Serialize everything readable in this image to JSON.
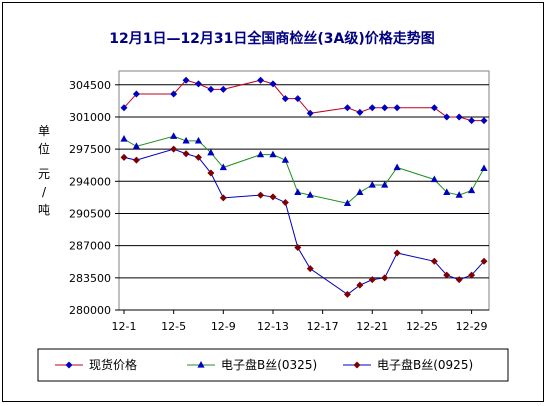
{
  "chart_data": {
    "type": "line",
    "title": "12月1日—12月31日全国商检丝(3A级)价格走势图",
    "ylabel": [
      "单",
      "位",
      "元",
      "/",
      "吨"
    ],
    "xlabel": "",
    "ylim": [
      280000,
      306000
    ],
    "yticks": [
      280000,
      283500,
      287000,
      290500,
      294000,
      297500,
      301000,
      304500
    ],
    "xlim": [
      1,
      30
    ],
    "xticks": [
      {
        "x": 1,
        "label": "12-1"
      },
      {
        "x": 5,
        "label": "12-5"
      },
      {
        "x": 9,
        "label": "12-9"
      },
      {
        "x": 13,
        "label": "12-13"
      },
      {
        "x": 17,
        "label": "12-17"
      },
      {
        "x": 21,
        "label": "12-21"
      },
      {
        "x": 25,
        "label": "12-25"
      },
      {
        "x": 29,
        "label": "12-29"
      }
    ],
    "grid": "horizontal",
    "legend_position": "bottom",
    "series": [
      {
        "name": "现货价格",
        "color": "#c0001e",
        "marker": "diamond",
        "marker_color": "#0000c0",
        "points": [
          [
            1,
            302000
          ],
          [
            2,
            303500
          ],
          [
            5,
            303500
          ],
          [
            6,
            305000
          ],
          [
            7,
            304600
          ],
          [
            8,
            304000
          ],
          [
            9,
            304000
          ],
          [
            12,
            305000
          ],
          [
            13,
            304600
          ],
          [
            14,
            303000
          ],
          [
            15,
            303000
          ],
          [
            16,
            301400
          ],
          [
            19,
            302000
          ],
          [
            20,
            301500
          ],
          [
            21,
            302000
          ],
          [
            22,
            302000
          ],
          [
            23,
            302000
          ],
          [
            26,
            302000
          ],
          [
            27,
            301000
          ],
          [
            28,
            301000
          ],
          [
            29,
            300600
          ],
          [
            30,
            300600
          ]
        ]
      },
      {
        "name": "电子盘B丝(0325)",
        "color": "#209020",
        "marker": "triangle",
        "marker_color": "#0000c0",
        "points": [
          [
            1,
            298600
          ],
          [
            2,
            297800
          ],
          [
            5,
            298900
          ],
          [
            6,
            298400
          ],
          [
            7,
            298400
          ],
          [
            8,
            297100
          ],
          [
            9,
            295500
          ],
          [
            12,
            296900
          ],
          [
            13,
            296900
          ],
          [
            14,
            296300
          ],
          [
            15,
            292800
          ],
          [
            16,
            292500
          ],
          [
            19,
            291600
          ],
          [
            20,
            292800
          ],
          [
            21,
            293600
          ],
          [
            22,
            293600
          ],
          [
            23,
            295500
          ],
          [
            26,
            294200
          ],
          [
            27,
            292800
          ],
          [
            28,
            292500
          ],
          [
            29,
            293000
          ],
          [
            30,
            295400
          ]
        ]
      },
      {
        "name": "电子盘B丝(0925)",
        "color": "#0000c0",
        "marker": "diamond",
        "marker_color": "#800000",
        "points": [
          [
            1,
            296600
          ],
          [
            2,
            296300
          ],
          [
            5,
            297500
          ],
          [
            6,
            297000
          ],
          [
            7,
            296600
          ],
          [
            8,
            294900
          ],
          [
            9,
            292200
          ],
          [
            12,
            292500
          ],
          [
            13,
            292300
          ],
          [
            14,
            291700
          ],
          [
            15,
            286800
          ],
          [
            16,
            284500
          ],
          [
            19,
            281700
          ],
          [
            20,
            282700
          ],
          [
            21,
            283300
          ],
          [
            22,
            283500
          ],
          [
            23,
            286200
          ],
          [
            26,
            285300
          ],
          [
            27,
            283800
          ],
          [
            28,
            283300
          ],
          [
            29,
            283800
          ],
          [
            30,
            285300
          ]
        ]
      }
    ]
  }
}
